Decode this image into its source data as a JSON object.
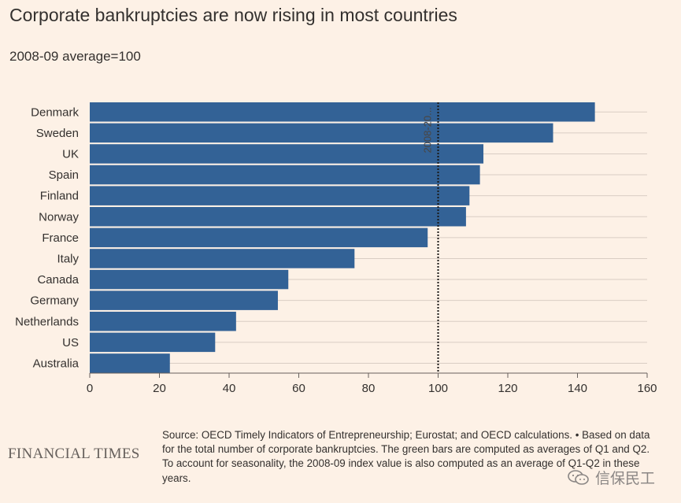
{
  "header": {
    "title": "Corporate bankruptcies are now rising in most countries",
    "subtitle": "2008-09 average=100"
  },
  "footer": {
    "logo": "FINANCIAL TIMES",
    "source": "Source: OECD Timely Indicators of Entrepreneurship; Eurostat; and OECD calculations. • Based on data for the total number of corporate bankruptcies. The green bars are computed as averages of Q1 and Q2. To account for seasonality, the 2008-09 index value is also computed as an average of Q1-Q2 in these years.",
    "watermark": "信保民工",
    "watermark_icon": "wechat-icon"
  },
  "colors": {
    "background": "#fdf1e6",
    "bar": "#336296",
    "gridline": "#d9cdc4",
    "reference_line": "#1a1817",
    "text": "#33302e"
  },
  "chart_data": {
    "type": "bar",
    "orientation": "horizontal",
    "categories": [
      "Denmark",
      "Sweden",
      "UK",
      "Spain",
      "Finland",
      "Norway",
      "France",
      "Italy",
      "Canada",
      "Germany",
      "Netherlands",
      "US",
      "Australia"
    ],
    "values": [
      145,
      133,
      113,
      112,
      109,
      108,
      97,
      76,
      57,
      54,
      42,
      36,
      23
    ],
    "xlim": [
      0,
      160
    ],
    "xticks": [
      0,
      20,
      40,
      60,
      80,
      100,
      120,
      140,
      160
    ],
    "reference_line": {
      "value": 100,
      "label": "2008-20..."
    },
    "title": "Corporate bankruptcies are now rising in most countries",
    "subtitle": "2008-09 average=100",
    "grid": true,
    "legend": "none"
  }
}
